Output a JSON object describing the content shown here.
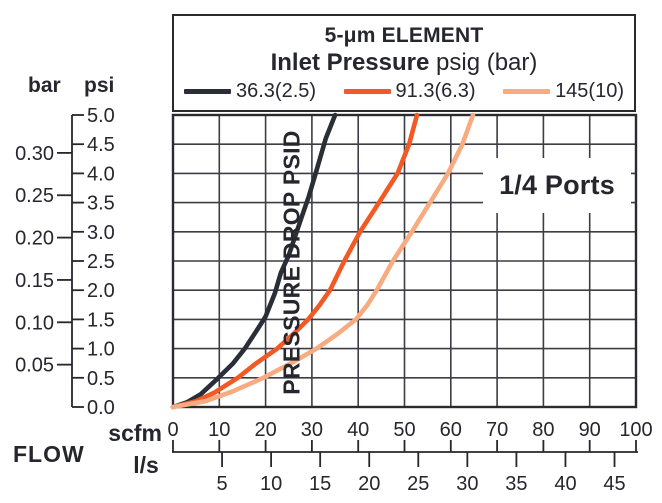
{
  "chart_data": {
    "type": "line",
    "title": "5-μm ELEMENT",
    "subtitle": "Inlet Pressure psig (bar)",
    "subtitle_bold": "Inlet Pressure",
    "subtitle_regular": " psig (bar)",
    "annotation": "1/4 Ports",
    "ylabel": "PRESSURE DROP PSID",
    "xlabel": "FLOW",
    "y_axis_units": {
      "secondary": "bar",
      "primary": "psi"
    },
    "x_axis_units": {
      "primary": "scfm",
      "secondary": "l/s"
    },
    "y_ticks_psi": [
      "0.0",
      "0.5",
      "1.0",
      "1.5",
      "2.0",
      "2.5",
      "3.0",
      "3.5",
      "4.0",
      "4.5",
      "5.0"
    ],
    "y_ticks_bar": [
      "0.05",
      "0.10",
      "0.15",
      "0.20",
      "0.25",
      "0.30"
    ],
    "y_ticks_bar_values": [
      0.05,
      0.1,
      0.15,
      0.2,
      0.25,
      0.3
    ],
    "x_ticks_scfm": [
      0,
      10,
      20,
      30,
      40,
      50,
      60,
      70,
      80,
      90,
      100
    ],
    "x_ticks_ls": [
      5,
      10,
      15,
      20,
      25,
      30,
      35,
      40,
      45
    ],
    "x_range_scfm": [
      0,
      100
    ],
    "y_range_psi": [
      0,
      5
    ],
    "psi_per_bar": 14.5038,
    "ls_per_scfm": 0.4719,
    "grid": true,
    "legend_position": "top",
    "ink_color": "#26262e",
    "grid_color": "#3d3d45",
    "series": [
      {
        "name": "36.3(2.5)",
        "color": "#2a2e36",
        "points_scfm_psid": [
          [
            0,
            0
          ],
          [
            3,
            0.08
          ],
          [
            6,
            0.22
          ],
          [
            9.8,
            0.5
          ],
          [
            13,
            0.75
          ],
          [
            15.5,
            1.0
          ],
          [
            18,
            1.3
          ],
          [
            20,
            1.55
          ],
          [
            22,
            1.95
          ],
          [
            23.3,
            2.3
          ],
          [
            25,
            2.6
          ],
          [
            26.5,
            2.95
          ],
          [
            28,
            3.3
          ],
          [
            29.3,
            3.6
          ],
          [
            31,
            4.05
          ],
          [
            33,
            4.6
          ],
          [
            35,
            5.0
          ]
        ]
      },
      {
        "name": "91.3(6.3)",
        "color": "#f15a24",
        "points_scfm_psid": [
          [
            0,
            0
          ],
          [
            5,
            0.1
          ],
          [
            9,
            0.25
          ],
          [
            14,
            0.5
          ],
          [
            18,
            0.75
          ],
          [
            22.5,
            1.0
          ],
          [
            26,
            1.25
          ],
          [
            29.2,
            1.5
          ],
          [
            31.7,
            1.75
          ],
          [
            33.9,
            2.0
          ],
          [
            37,
            2.5
          ],
          [
            40.4,
            3.0
          ],
          [
            44.5,
            3.5
          ],
          [
            48.5,
            4.0
          ],
          [
            51,
            4.5
          ],
          [
            52.7,
            5.0
          ]
        ]
      },
      {
        "name": "145(10)",
        "color": "#f7ab80",
        "points_scfm_psid": [
          [
            0,
            0
          ],
          [
            7,
            0.1
          ],
          [
            13,
            0.27
          ],
          [
            19.5,
            0.5
          ],
          [
            25.5,
            0.75
          ],
          [
            31,
            1.0
          ],
          [
            35.5,
            1.25
          ],
          [
            39.5,
            1.5
          ],
          [
            42,
            1.75
          ],
          [
            44,
            2.0
          ],
          [
            47.5,
            2.5
          ],
          [
            51.6,
            3.0
          ],
          [
            55.5,
            3.5
          ],
          [
            59.4,
            4.0
          ],
          [
            62.5,
            4.5
          ],
          [
            64.8,
            5.0
          ]
        ]
      }
    ]
  }
}
